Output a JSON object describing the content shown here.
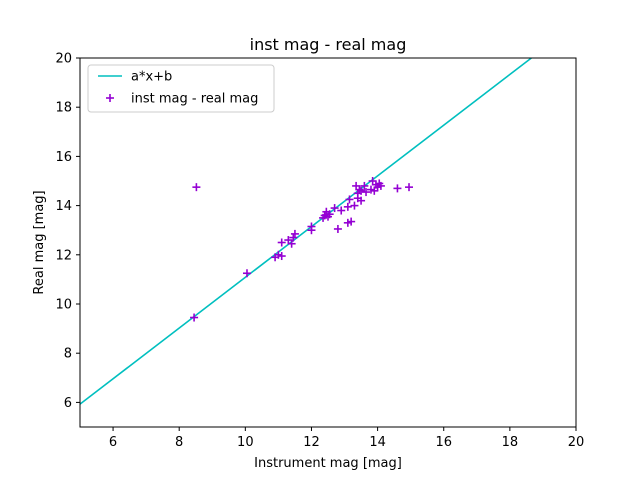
{
  "chart_data": {
    "type": "scatter",
    "title": "inst mag - real mag",
    "xlabel": "Instrument mag [mag]",
    "ylabel": "Real mag [mag]",
    "xlim": [
      5,
      20
    ],
    "ylim": [
      5,
      20
    ],
    "xticks": [
      6,
      8,
      10,
      12,
      14,
      16,
      18,
      20
    ],
    "yticks": [
      6,
      8,
      10,
      12,
      14,
      16,
      18,
      20
    ],
    "grid": false,
    "legend_position": "top-left",
    "series": [
      {
        "name": "a*x+b",
        "kind": "line",
        "color": "#00bfbf",
        "x": [
          5,
          18.65
        ],
        "y": [
          5.93,
          20
        ]
      },
      {
        "name": "inst mag - real mag",
        "kind": "scatter",
        "marker": "+",
        "color": "#9400d3",
        "x": [
          8.45,
          8.52,
          10.05,
          10.9,
          11.0,
          11.1,
          11.1,
          11.3,
          11.4,
          11.45,
          11.5,
          12.0,
          12.0,
          12.35,
          12.4,
          12.45,
          12.5,
          12.55,
          12.7,
          12.8,
          12.9,
          13.1,
          13.1,
          13.15,
          13.2,
          13.3,
          13.35,
          13.4,
          13.4,
          13.45,
          13.5,
          13.5,
          13.6,
          13.65,
          13.8,
          13.85,
          13.9,
          13.95,
          14.0,
          14.05,
          14.1,
          14.6,
          14.95
        ],
        "y": [
          9.45,
          14.75,
          11.25,
          11.9,
          12.0,
          11.95,
          12.5,
          12.6,
          12.45,
          12.7,
          12.85,
          13.0,
          13.15,
          13.5,
          13.6,
          13.75,
          13.55,
          13.65,
          13.9,
          13.05,
          13.8,
          13.3,
          13.95,
          14.25,
          13.35,
          14.0,
          14.8,
          14.3,
          14.5,
          14.65,
          14.2,
          14.6,
          14.8,
          14.55,
          14.65,
          15.0,
          14.6,
          14.85,
          14.75,
          14.9,
          14.8,
          14.7,
          14.75
        ]
      }
    ]
  }
}
